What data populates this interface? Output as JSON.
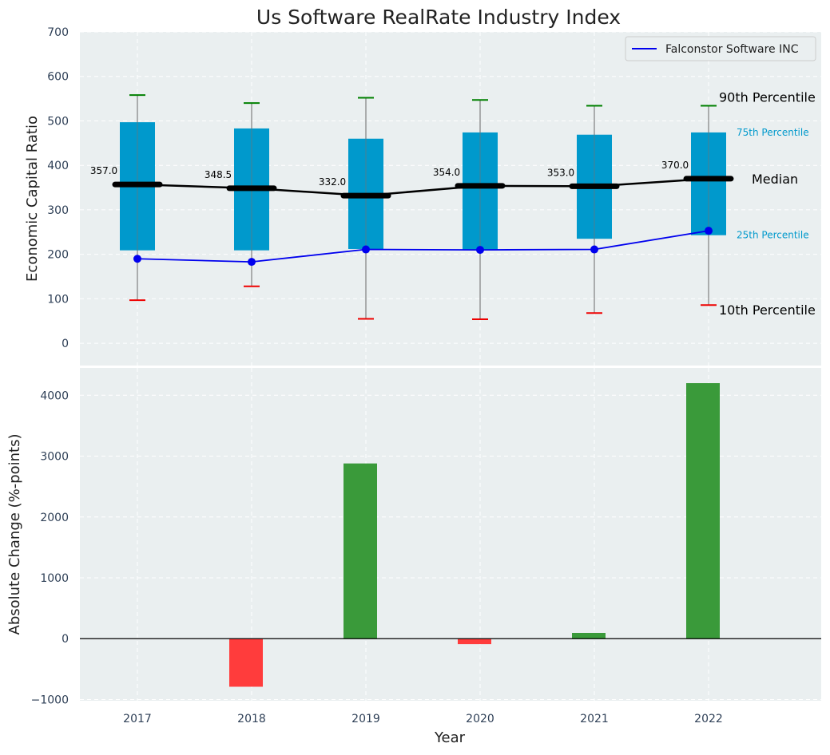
{
  "chart_data": [
    {
      "type": "box",
      "title": "Us Software RealRate Industry Index",
      "ylabel": "Economic Capital Ratio",
      "ylim": [
        -50,
        700
      ],
      "yticks": [
        0,
        100,
        200,
        300,
        400,
        500,
        600,
        700
      ],
      "categories": [
        "2017",
        "2018",
        "2019",
        "2020",
        "2021",
        "2022"
      ],
      "grid": true,
      "legend": {
        "position": "top-right",
        "entries": [
          "Falconstor Software INC"
        ]
      },
      "percentiles": {
        "p10": [
          97,
          128,
          55,
          54,
          68,
          86
        ],
        "p25": [
          209,
          209,
          212,
          211,
          235,
          243
        ],
        "median": [
          357.0,
          348.5,
          332.0,
          354.0,
          353.0,
          370.0
        ],
        "p75": [
          497,
          483,
          460,
          474,
          469,
          474
        ],
        "p90": [
          558,
          540,
          552,
          547,
          534,
          534
        ]
      },
      "series": [
        {
          "name": "Falconstor Software INC",
          "values": [
            190,
            183,
            211,
            210,
            211,
            253
          ],
          "color": "#0000ee"
        }
      ],
      "median_labels": [
        "357.0",
        "348.5",
        "332.0",
        "354.0",
        "353.0",
        "370.0"
      ],
      "annotations": {
        "p90": "90th Percentile",
        "p75": "75th Percentile",
        "median": "Median",
        "p25": "25th Percentile",
        "p10": "10th Percentile"
      },
      "colors": {
        "box": "#0099cc",
        "p90_cap": "#008000",
        "p10_cap": "#ee0000",
        "median": "#000000",
        "background": "#eaeff0"
      }
    },
    {
      "type": "bar",
      "ylabel": "Absolute Change (%-points)",
      "xlabel": "Year",
      "ylim": [
        -1020,
        4450
      ],
      "yticks": [
        -1000,
        0,
        1000,
        2000,
        3000,
        4000
      ],
      "ytick_labels": [
        "−1000",
        "0",
        "1000",
        "2000",
        "3000",
        "4000"
      ],
      "categories": [
        "2017",
        "2018",
        "2019",
        "2020",
        "2021",
        "2022"
      ],
      "values": [
        0,
        -790,
        2880,
        -90,
        95,
        4200
      ],
      "colors": {
        "positive": "#3a9a3a",
        "negative": "#ff3c3c"
      }
    }
  ]
}
